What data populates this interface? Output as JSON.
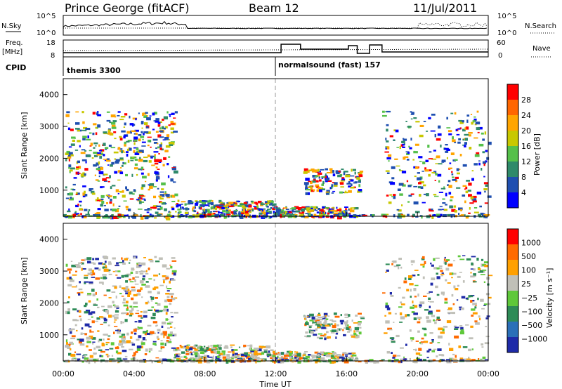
{
  "header": {
    "station": "Prince George (fitACF)",
    "beam": "Beam 12",
    "date": "11/Jul/2011"
  },
  "sky_panel": {
    "left_label": "N.Sky",
    "right_label": "N.Search",
    "left_ticks": [
      "10^5",
      "10^0"
    ],
    "right_ticks": [
      "10^5",
      "10^0"
    ]
  },
  "freq_panel": {
    "left_label_1": "Freq.",
    "left_label_2": "[MHz]",
    "right_label": "Nave",
    "left_ticks": [
      "18",
      "8"
    ],
    "right_ticks": [
      "60",
      "0"
    ]
  },
  "cpid_panel": {
    "label": "CPID",
    "modes": [
      {
        "name": "themis 3300",
        "start_hour": 0
      },
      {
        "name": "normalsound (fast) 157",
        "start_hour": 12
      }
    ]
  },
  "time_axis": {
    "label": "Time UT",
    "ticks": [
      "00:00",
      "04:00",
      "08:00",
      "12:00",
      "16:00",
      "20:00",
      "00:00"
    ]
  },
  "chart_data": [
    {
      "type": "heatmap",
      "name": "power",
      "ylabel": "Slant Range [km]",
      "ylim": [
        180,
        4500
      ],
      "y_ticks": [
        "1000",
        "2000",
        "3000",
        "4000"
      ],
      "xlim_hours": [
        0,
        24
      ],
      "colorbar": {
        "label": "Power [dB]",
        "ticks": [
          "4",
          "8",
          "12",
          "16",
          "20",
          "24",
          "28"
        ],
        "colors": [
          "#0000ff",
          "#1f4fb0",
          "#2f8a6a",
          "#55c04a",
          "#c8c800",
          "#ffa500",
          "#ff6600",
          "#ff0000"
        ]
      }
    },
    {
      "type": "heatmap",
      "name": "velocity",
      "ylabel": "Slant Range [km]",
      "ylim": [
        180,
        4500
      ],
      "y_ticks": [
        "1000",
        "2000",
        "3000",
        "4000"
      ],
      "xlim_hours": [
        0,
        24
      ],
      "colorbar": {
        "label": "Velocity [m s⁻¹]",
        "ticks": [
          "1000",
          "500",
          "100",
          "25",
          "−25",
          "−100",
          "−500",
          "−1000"
        ],
        "colors": [
          "#1e2aa8",
          "#2a6fb8",
          "#2e8b57",
          "#5fc83a",
          "#c0c0b8",
          "#ffa000",
          "#ff6a00",
          "#ff0000"
        ]
      }
    }
  ]
}
